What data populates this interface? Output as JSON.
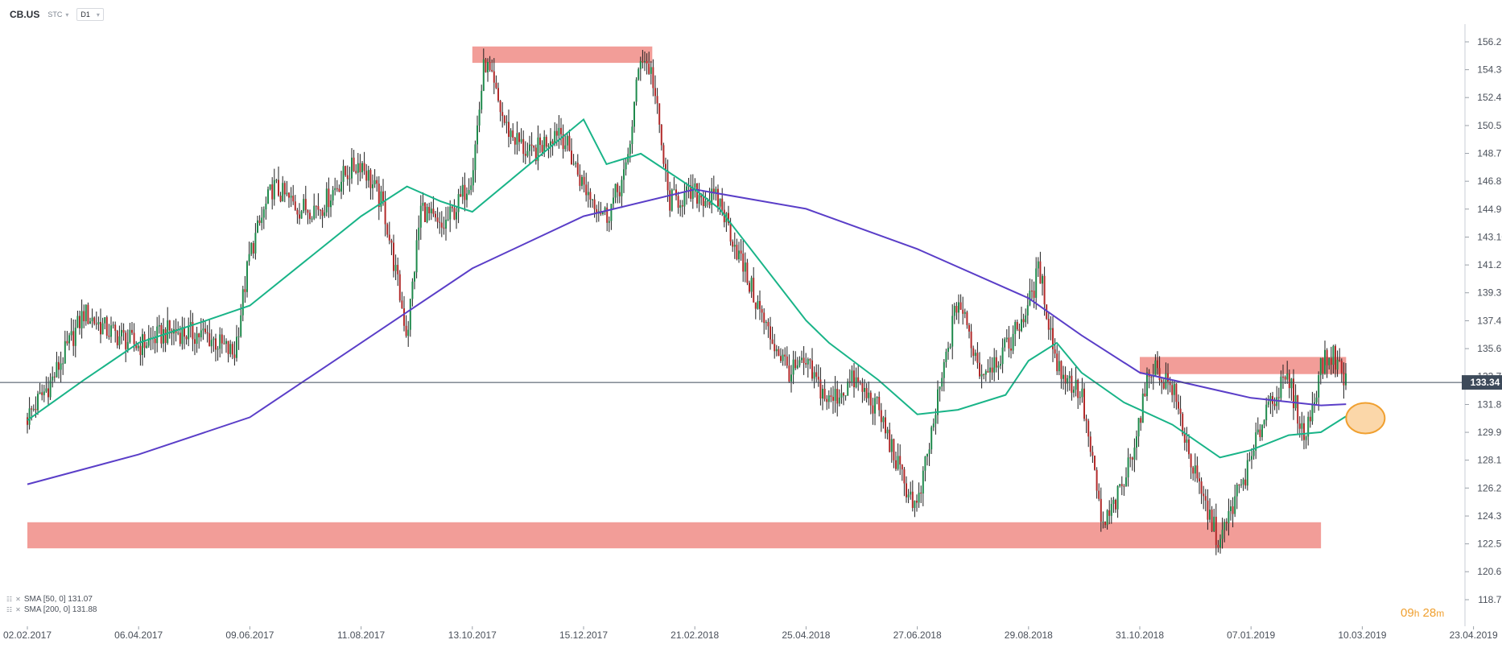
{
  "header": {
    "symbol": "CB.US",
    "chart_type": "STC",
    "timeframe": "D1"
  },
  "legend": [
    {
      "label": "SMA [50, 0] 131.07"
    },
    {
      "label": "SMA [200, 0] 131.88"
    }
  ],
  "timer": {
    "hours": "09",
    "h": "h",
    "minutes": "28",
    "m": "m"
  },
  "colors": {
    "sma50": "#19b488",
    "sma200": "#5a3ec8",
    "zone": "#f08c86",
    "highlight_fill": "#f9c98c",
    "highlight_stroke": "#f0a030",
    "price_line": "#3d4a5a",
    "candle": "#1e1e1e"
  },
  "chart_data": {
    "type": "candlestick",
    "y_ticks": [
      "156.21",
      "154.34",
      "152.47",
      "150.59",
      "148.72",
      "146.85",
      "144.98",
      "143.10",
      "141.23",
      "139.36",
      "137.48",
      "135.61",
      "133.74",
      "131.86",
      "129.99",
      "128.12",
      "126.25",
      "124.37",
      "122.50",
      "120.63",
      "118.75"
    ],
    "y_range": [
      118.75,
      156.21
    ],
    "x_ticks": [
      "02.02.2017",
      "06.04.2017",
      "09.06.2017",
      "11.08.2017",
      "13.10.2017",
      "15.12.2017",
      "21.02.2018",
      "25.04.2018",
      "27.06.2018",
      "29.08.2018",
      "31.10.2018",
      "07.01.2019",
      "10.03.2019",
      "23.04.2019"
    ],
    "current_price": 133.34,
    "sma50_last": 131.07,
    "sma200_last": 131.88,
    "close_path": [
      [
        "02.02.2017",
        131.0
      ],
      [
        "16.02.2017",
        133.5
      ],
      [
        "06.03.2017",
        138.0
      ],
      [
        "20.03.2017",
        136.8
      ],
      [
        "06.04.2017",
        135.8
      ],
      [
        "24.04.2017",
        136.8
      ],
      [
        "15.05.2017",
        136.5
      ],
      [
        "31.05.2017",
        135.2
      ],
      [
        "09.06.2017",
        142.0
      ],
      [
        "22.06.2017",
        146.5
      ],
      [
        "07.07.2017",
        145.0
      ],
      [
        "20.07.2017",
        145.2
      ],
      [
        "01.08.2017",
        147.2
      ],
      [
        "11.08.2017",
        148.2
      ],
      [
        "24.08.2017",
        145.0
      ],
      [
        "06.09.2017",
        136.5
      ],
      [
        "14.09.2017",
        145.2
      ],
      [
        "25.09.2017",
        143.5
      ],
      [
        "06.10.2017",
        145.5
      ],
      [
        "13.10.2017",
        147.5
      ],
      [
        "20.10.2017",
        155.0
      ],
      [
        "01.11.2017",
        150.5
      ],
      [
        "15.11.2017",
        148.5
      ],
      [
        "01.12.2017",
        150.5
      ],
      [
        "15.12.2017",
        146.5
      ],
      [
        "29.12.2017",
        144.5
      ],
      [
        "10.01.2018",
        147.5
      ],
      [
        "19.01.2018",
        155.5
      ],
      [
        "26.01.2018",
        154.0
      ],
      [
        "05.02.2018",
        145.5
      ],
      [
        "21.02.2018",
        146.0
      ],
      [
        "07.03.2018",
        145.5
      ],
      [
        "20.03.2018",
        141.2
      ],
      [
        "03.04.2018",
        136.8
      ],
      [
        "16.04.2018",
        134.0
      ],
      [
        "25.04.2018",
        134.5
      ],
      [
        "08.05.2018",
        132.0
      ],
      [
        "22.05.2018",
        133.5
      ],
      [
        "05.06.2018",
        131.5
      ],
      [
        "18.06.2018",
        127.0
      ],
      [
        "27.06.2018",
        124.8
      ],
      [
        "10.07.2018",
        133.0
      ],
      [
        "20.07.2018",
        139.0
      ],
      [
        "02.08.2018",
        134.0
      ],
      [
        "16.08.2018",
        135.5
      ],
      [
        "29.08.2018",
        138.5
      ],
      [
        "04.09.2018",
        141.0
      ],
      [
        "14.09.2018",
        134.5
      ],
      [
        "28.09.2018",
        132.5
      ],
      [
        "10.10.2018",
        123.5
      ],
      [
        "22.10.2018",
        126.5
      ],
      [
        "31.10.2018",
        131.0
      ],
      [
        "07.11.2018",
        134.5
      ],
      [
        "20.11.2018",
        133.0
      ],
      [
        "05.12.2018",
        126.5
      ],
      [
        "19.12.2018",
        122.5
      ],
      [
        "28.12.2018",
        125.5
      ],
      [
        "07.01.2019",
        128.0
      ],
      [
        "16.01.2019",
        132.0
      ],
      [
        "28.01.2019",
        133.5
      ],
      [
        "06.02.2019",
        129.5
      ],
      [
        "15.02.2019",
        134.5
      ],
      [
        "22.02.2019",
        135.2
      ],
      [
        "01.03.2019",
        133.34
      ]
    ],
    "sma50_path": [
      [
        "02.02.2017",
        130.8
      ],
      [
        "06.03.2017",
        133.5
      ],
      [
        "06.04.2017",
        136.0
      ],
      [
        "15.05.2017",
        137.5
      ],
      [
        "09.06.2017",
        138.5
      ],
      [
        "11.08.2017",
        144.5
      ],
      [
        "06.09.2017",
        146.5
      ],
      [
        "25.09.2017",
        145.5
      ],
      [
        "13.10.2017",
        144.8
      ],
      [
        "15.12.2017",
        151.0
      ],
      [
        "29.12.2017",
        148.0
      ],
      [
        "19.01.2018",
        148.7
      ],
      [
        "21.02.2018",
        146.3
      ],
      [
        "07.03.2018",
        145.0
      ],
      [
        "25.04.2018",
        137.5
      ],
      [
        "08.05.2018",
        136.0
      ],
      [
        "05.06.2018",
        133.5
      ],
      [
        "27.06.2018",
        131.2
      ],
      [
        "20.07.2018",
        131.5
      ],
      [
        "16.08.2018",
        132.5
      ],
      [
        "29.08.2018",
        134.8
      ],
      [
        "14.09.2018",
        136.0
      ],
      [
        "28.09.2018",
        134.0
      ],
      [
        "22.10.2018",
        132.0
      ],
      [
        "20.11.2018",
        130.5
      ],
      [
        "19.12.2018",
        128.3
      ],
      [
        "07.01.2019",
        128.8
      ],
      [
        "28.01.2019",
        129.8
      ],
      [
        "15.02.2019",
        130.0
      ],
      [
        "01.03.2019",
        131.07
      ]
    ],
    "sma200_path": [
      [
        "02.02.2017",
        126.5
      ],
      [
        "06.04.2017",
        128.5
      ],
      [
        "09.06.2017",
        131.0
      ],
      [
        "11.08.2017",
        136.0
      ],
      [
        "13.10.2017",
        141.0
      ],
      [
        "15.12.2017",
        144.5
      ],
      [
        "21.02.2018",
        146.3
      ],
      [
        "25.04.2018",
        145.0
      ],
      [
        "27.06.2018",
        142.3
      ],
      [
        "29.08.2018",
        139.0
      ],
      [
        "28.09.2018",
        136.5
      ],
      [
        "31.10.2018",
        134.0
      ],
      [
        "07.01.2019",
        132.3
      ],
      [
        "15.02.2019",
        131.8
      ],
      [
        "01.03.2019",
        131.88
      ]
    ],
    "resistance_zones": [
      {
        "from": "13.10.2017",
        "to": "26.01.2018",
        "low": 154.8,
        "high": 155.9
      },
      {
        "from": "31.10.2018",
        "to": "01.03.2019",
        "low": 133.9,
        "high": 135.05
      }
    ],
    "support_zone": {
      "from": "02.02.2017",
      "to": "15.02.2019",
      "low": 122.2,
      "high": 123.95
    },
    "highlight": {
      "date": "01.03.2019",
      "price": 131.1
    }
  }
}
